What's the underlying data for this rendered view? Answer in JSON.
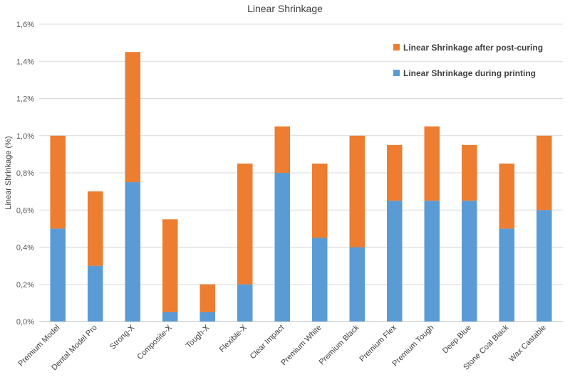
{
  "chart_data": {
    "type": "bar",
    "stacked": true,
    "title": "Linear Shrinkage",
    "xlabel": "",
    "ylabel": "Linear Shrinkage (%)",
    "ylim": [
      0,
      1.6
    ],
    "ytick_step": 0.2,
    "ytick_labels": [
      "0,0%",
      "0,2%",
      "0,4%",
      "0,6%",
      "0,8%",
      "1,0%",
      "1,2%",
      "1,4%",
      "1,6%"
    ],
    "grid": true,
    "legend_position": "top-right",
    "categories": [
      "Premium Model",
      "Dental Model Pro",
      "Strong-X",
      "Composite-X",
      "Tough-X",
      "Flexible-X",
      "Clear Impact",
      "Premium White",
      "Premium Black",
      "Premium Flex",
      "Premium Tough",
      "Deep Blue",
      "Stone Coal Black",
      "Wax Castable"
    ],
    "series": [
      {
        "name": "Linear Shrinkage during printing",
        "color": "#5b9bd5",
        "values": [
          0.5,
          0.3,
          0.75,
          0.05,
          0.05,
          0.2,
          0.8,
          0.45,
          0.4,
          0.65,
          0.65,
          0.65,
          0.5,
          0.6
        ]
      },
      {
        "name": "Linear Shrinkage after post-curing",
        "color": "#ed7d31",
        "values": [
          0.5,
          0.4,
          0.7,
          0.5,
          0.15,
          0.65,
          0.25,
          0.4,
          0.6,
          0.3,
          0.4,
          0.3,
          0.35,
          0.4
        ]
      }
    ],
    "legend_order": [
      1,
      0
    ]
  }
}
